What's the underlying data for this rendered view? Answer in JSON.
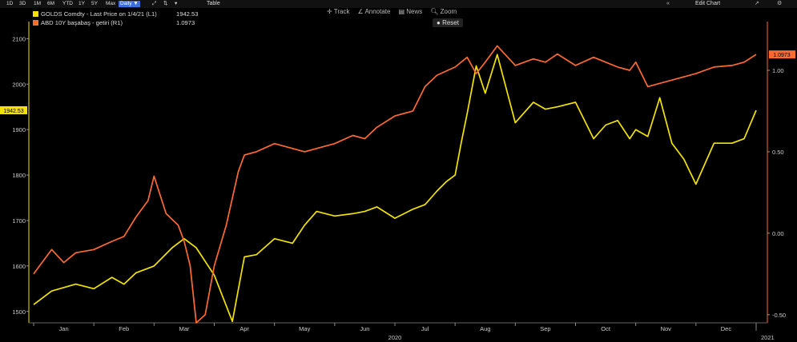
{
  "toolbar": {
    "ranges": [
      "1D",
      "3D",
      "1M",
      "6M",
      "YTD",
      "1Y",
      "5Y",
      "Max"
    ],
    "interval": "Daily ▼",
    "table_label": "Table",
    "edit_chart_label": "Edit Chart",
    "tools": [
      "Track",
      "Annotate",
      "News",
      "Zoom"
    ],
    "reset_label": "Reset"
  },
  "legend": {
    "gold_name": "GOLDS Comdty - Last Price on 1/4/21 (L1)",
    "gold_value": "1942.53",
    "gold_color": "#f2e400",
    "yield_name": "ABD 10Y başabaş - getiri (R1)",
    "yield_value": "1.0973",
    "yield_color": "#ff6a33"
  },
  "chart_data": {
    "type": "line",
    "x_ticks": [
      "Jan",
      "Feb",
      "Mar",
      "Apr",
      "May",
      "Jun",
      "Jul",
      "Aug",
      "Sep",
      "Oct",
      "Nov",
      "Dec"
    ],
    "x_year_labels": [
      "2020",
      "2021"
    ],
    "y_left_ticks": [
      1500,
      1600,
      1700,
      1800,
      1900,
      2000,
      2100
    ],
    "y_left_range": [
      1475,
      2120
    ],
    "y_right_ticks": [
      "1.00",
      "0.50",
      "0.00",
      "-0.50"
    ],
    "y_right_range": [
      -0.55,
      1.25
    ],
    "last_left_label": "1942.53",
    "last_right_label": "1.0973",
    "series": [
      {
        "name": "GOLDS Comdty - Last Price on 1/4/21 (L1)",
        "axis": "left",
        "color": "#f2e400",
        "x": [
          0.0,
          0.3,
          0.7,
          1.0,
          1.3,
          1.5,
          1.7,
          2.0,
          2.3,
          2.5,
          2.7,
          3.0,
          3.3,
          3.5,
          3.7,
          4.0,
          4.3,
          4.5,
          4.7,
          5.0,
          5.3,
          5.5,
          5.7,
          6.0,
          6.3,
          6.5,
          6.7,
          6.85,
          7.0,
          7.1,
          7.2,
          7.35,
          7.5,
          7.7,
          8.0,
          8.3,
          8.5,
          8.7,
          9.0,
          9.3,
          9.5,
          9.7,
          9.9,
          10.0,
          10.2,
          10.4,
          10.6,
          10.8,
          11.0,
          11.3,
          11.6,
          11.8,
          12.0
        ],
        "values": [
          1515,
          1545,
          1560,
          1550,
          1575,
          1560,
          1585,
          1600,
          1640,
          1660,
          1640,
          1580,
          1478,
          1620,
          1625,
          1660,
          1650,
          1690,
          1720,
          1710,
          1715,
          1720,
          1730,
          1705,
          1725,
          1735,
          1765,
          1785,
          1800,
          1870,
          1935,
          2040,
          1980,
          2065,
          1915,
          1960,
          1945,
          1950,
          1960,
          1880,
          1910,
          1920,
          1880,
          1900,
          1885,
          1970,
          1870,
          1835,
          1780,
          1870,
          1870,
          1880,
          1942.53
        ]
      },
      {
        "name": "ABD 10Y başabaş - getiri (R1)",
        "axis": "right",
        "color": "#ff6a33",
        "x": [
          0.0,
          0.3,
          0.5,
          0.7,
          1.0,
          1.3,
          1.5,
          1.7,
          1.9,
          2.0,
          2.2,
          2.4,
          2.5,
          2.6,
          2.7,
          2.85,
          3.0,
          3.2,
          3.4,
          3.5,
          3.7,
          4.0,
          4.3,
          4.5,
          4.7,
          5.0,
          5.3,
          5.5,
          5.7,
          6.0,
          6.3,
          6.5,
          6.7,
          7.0,
          7.2,
          7.35,
          7.5,
          7.7,
          8.0,
          8.3,
          8.5,
          8.7,
          9.0,
          9.3,
          9.5,
          9.7,
          9.9,
          10.0,
          10.2,
          10.4,
          10.7,
          11.0,
          11.3,
          11.6,
          11.8,
          12.0
        ],
        "values": [
          -0.25,
          -0.1,
          -0.18,
          -0.12,
          -0.1,
          -0.05,
          -0.02,
          0.1,
          0.2,
          0.35,
          0.12,
          0.05,
          -0.05,
          -0.2,
          -0.55,
          -0.5,
          -0.2,
          0.05,
          0.38,
          0.48,
          0.5,
          0.55,
          0.52,
          0.5,
          0.52,
          0.55,
          0.6,
          0.58,
          0.65,
          0.72,
          0.75,
          0.9,
          0.97,
          1.02,
          1.08,
          0.98,
          1.05,
          1.15,
          1.03,
          1.07,
          1.05,
          1.1,
          1.03,
          1.08,
          1.05,
          1.02,
          1.0,
          1.05,
          0.9,
          0.92,
          0.95,
          0.98,
          1.02,
          1.03,
          1.05,
          1.0973
        ]
      }
    ]
  }
}
